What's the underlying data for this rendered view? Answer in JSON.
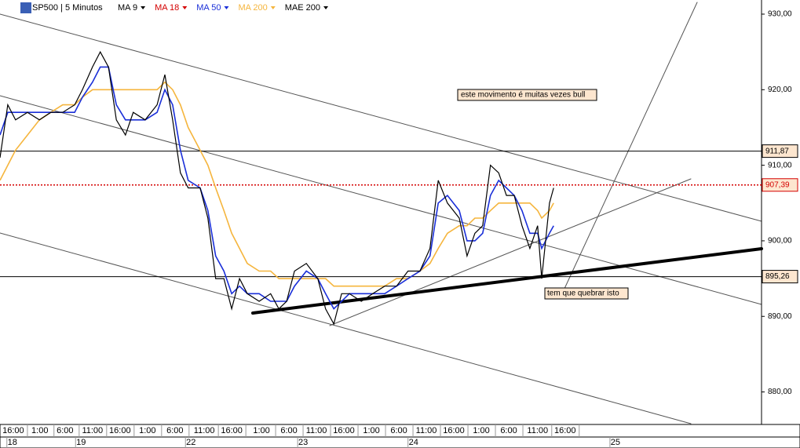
{
  "chart_data": {
    "type": "line",
    "instrument": "SP500 | 5 Minutos",
    "other_indicators": [
      {
        "name": "MA 18",
        "color": "#d40000"
      },
      {
        "name": "MAE 200",
        "color": "#000000"
      }
    ],
    "x": [
      0,
      17,
      34,
      60,
      86,
      111,
      137,
      163,
      180,
      202,
      219,
      237,
      254,
      274,
      291,
      317,
      343,
      360,
      377,
      394,
      411,
      437,
      454,
      471,
      489,
      506,
      523,
      540,
      566,
      591,
      609,
      626,
      643,
      669,
      694,
      711,
      729,
      746,
      763,
      789,
      814,
      840,
      866,
      891,
      917,
      939,
      957,
      977,
      1003,
      1020,
      1037,
      1054,
      1071,
      1089,
      1106,
      1123,
      1140,
      1157,
      1174,
      1183,
      1200,
      1209
    ],
    "series": [
      {
        "name": "MA 9",
        "color": "#000000",
        "values": [
          911,
          918,
          916,
          917,
          916,
          917,
          917,
          918,
          920,
          923,
          925,
          923,
          916,
          914,
          917,
          916,
          918,
          922,
          916,
          909,
          907,
          907,
          903,
          895,
          895,
          891,
          895,
          893,
          892,
          893,
          891,
          892,
          896,
          897,
          895,
          891,
          889,
          893,
          893,
          892,
          893,
          894,
          894,
          896,
          896,
          899,
          908,
          905,
          903,
          898,
          901,
          902,
          910,
          909,
          906,
          906,
          902,
          899,
          902,
          895,
          905,
          907
        ]
      },
      {
        "name": "MA 50",
        "color": "#1a2fd8",
        "values": [
          914,
          917,
          917,
          917,
          917,
          917,
          917,
          917,
          919,
          921,
          923,
          923,
          918,
          916,
          916,
          916,
          917,
          920,
          918,
          912,
          908,
          907,
          904,
          898,
          896,
          893,
          894,
          893,
          893,
          892,
          892,
          892,
          894,
          896,
          895,
          893,
          891,
          892,
          893,
          893,
          893,
          893,
          894,
          895,
          896,
          898,
          905,
          906,
          904,
          900,
          900,
          901,
          906,
          908,
          907,
          906,
          904,
          901,
          901,
          899,
          901,
          902
        ]
      },
      {
        "name": "MA 200",
        "color": "#f5b53d",
        "values": [
          908,
          910,
          912,
          914,
          916,
          917,
          918,
          918,
          919,
          920,
          920,
          920,
          920,
          920,
          920,
          920,
          920,
          921,
          920,
          918,
          915,
          912,
          910,
          907,
          904,
          901,
          899,
          897,
          896,
          896,
          895,
          895,
          895,
          895,
          895,
          895,
          894,
          894,
          894,
          894,
          894,
          894,
          895,
          895,
          896,
          897,
          899,
          901,
          902,
          902,
          903,
          903,
          904,
          905,
          905,
          905,
          905,
          905,
          904,
          903,
          904,
          905
        ]
      }
    ],
    "xlim": [
      0,
      1663
    ],
    "xticks": [
      {
        "value": 29,
        "label": "16:00"
      },
      {
        "value": 87,
        "label": "1:00"
      },
      {
        "value": 142,
        "label": "6:00"
      },
      {
        "value": 202,
        "label": "11:00"
      },
      {
        "value": 262,
        "label": "16:00"
      },
      {
        "value": 322,
        "label": "1:00"
      },
      {
        "value": 382,
        "label": "6:00"
      },
      {
        "value": 446,
        "label": "11:00"
      },
      {
        "value": 506,
        "label": "16:00"
      },
      {
        "value": 571,
        "label": "1:00"
      },
      {
        "value": 631,
        "label": "6:00"
      },
      {
        "value": 691,
        "label": "11:00"
      },
      {
        "value": 751,
        "label": "16:00"
      },
      {
        "value": 811,
        "label": "1:00"
      },
      {
        "value": 871,
        "label": "6:00"
      },
      {
        "value": 931,
        "label": "11:00"
      },
      {
        "value": 991,
        "label": "16:00"
      },
      {
        "value": 1051,
        "label": "1:00"
      },
      {
        "value": 1111,
        "label": "6:00"
      },
      {
        "value": 1174,
        "label": "11:00"
      },
      {
        "value": 1234,
        "label": "16:00"
      }
    ],
    "date_ticks": [
      {
        "value": 27,
        "label": "18"
      },
      {
        "value": 177,
        "label": "19"
      },
      {
        "value": 417,
        "label": "22"
      },
      {
        "value": 662,
        "label": "23"
      },
      {
        "value": 903,
        "label": "24"
      },
      {
        "value": 1344,
        "label": "25"
      }
    ],
    "ylim": [
      875.8,
      931.87
    ],
    "yticks": [
      {
        "value": 880,
        "label": "880,00"
      },
      {
        "value": 890,
        "label": "890,00"
      },
      {
        "value": 900,
        "label": "900,00"
      },
      {
        "value": 910,
        "label": "910,00"
      },
      {
        "value": 920,
        "label": "920,00"
      },
      {
        "value": 930,
        "label": "930,00"
      }
    ],
    "levels": [
      {
        "value": 911.87,
        "label": "911,87",
        "color": "#000000",
        "dotted": false
      },
      {
        "value": 907.39,
        "label": "907,39",
        "color": "#d40000",
        "dotted": true
      },
      {
        "value": 895.26,
        "label": "895,26",
        "color": "#000000",
        "dotted": false
      }
    ],
    "annotations": [
      "este movimento é muitas vezes bull",
      "tem que quebrar isto"
    ]
  }
}
